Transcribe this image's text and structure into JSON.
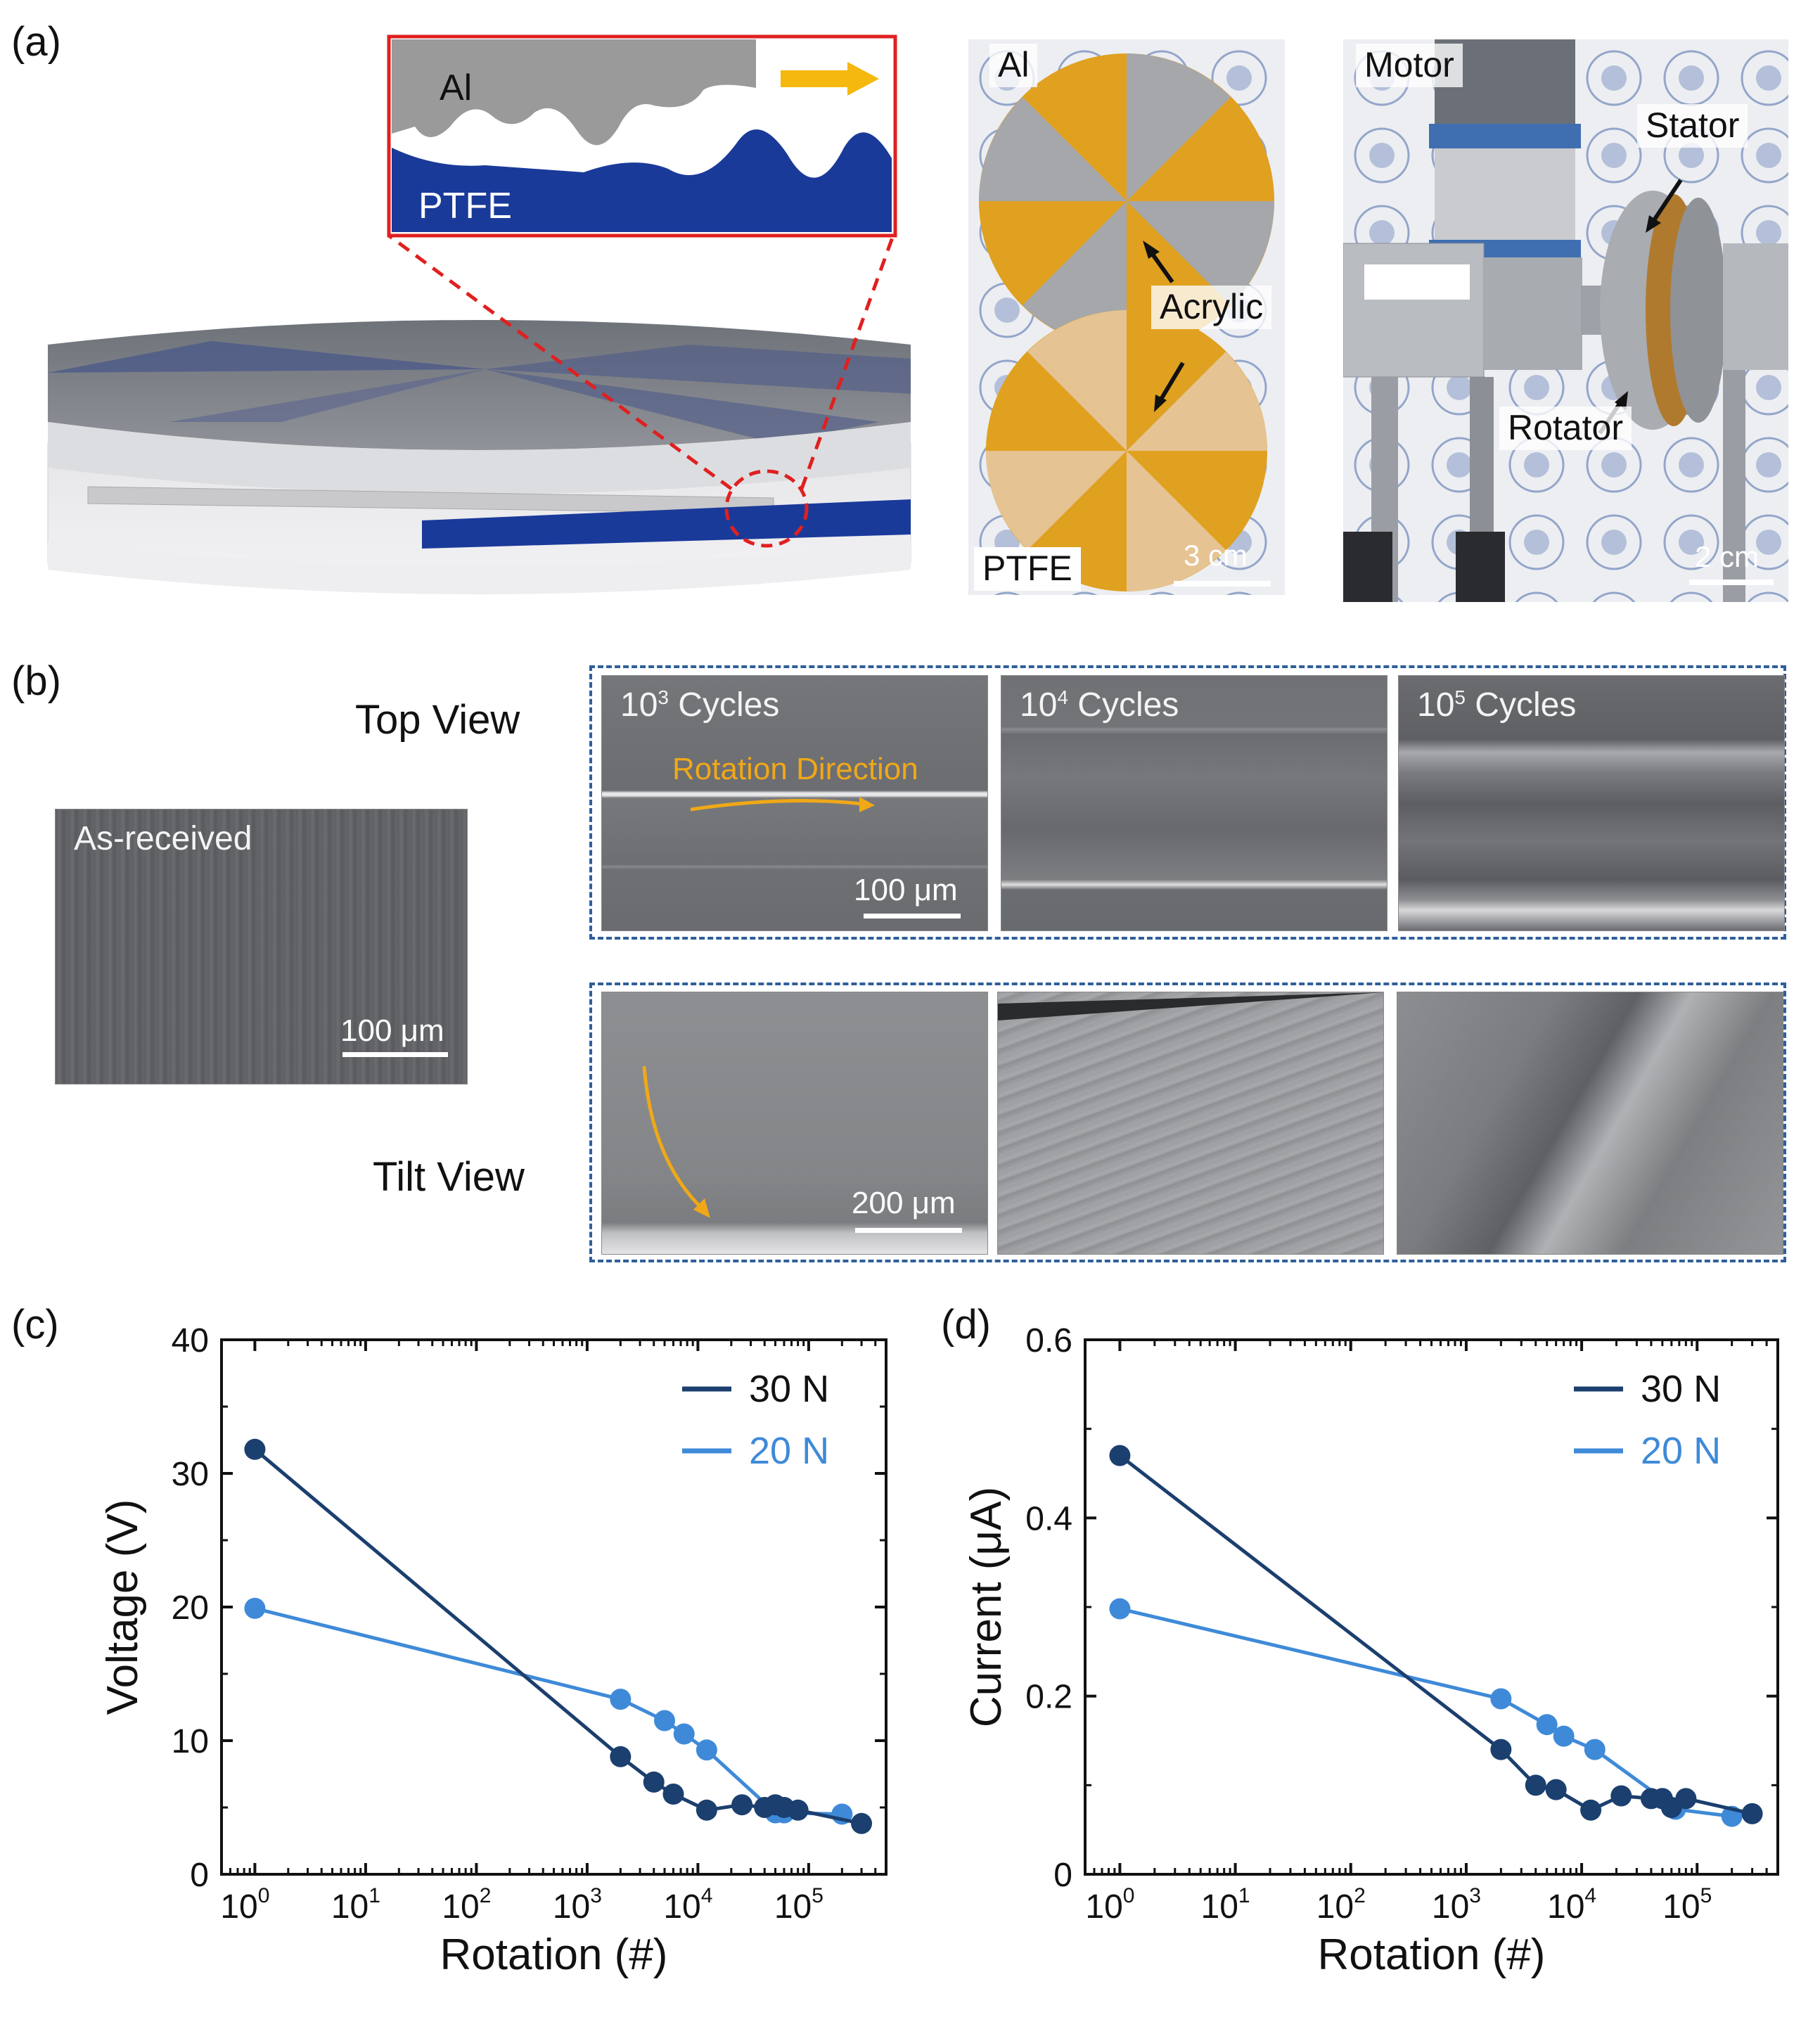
{
  "panel_a": {
    "label": "(a)",
    "inset": {
      "top_label": "Al",
      "bottom_label": "PTFE"
    },
    "photo_middle": {
      "label_top": "Al",
      "label_arrow": "Acrylic",
      "label_bottom": "PTFE",
      "scale": "3 cm"
    },
    "photo_right": {
      "label_motor": "Motor",
      "label_stator": "Stator",
      "label_rotator": "Rotator",
      "scale": "2 cm"
    },
    "colors": {
      "ptfe_blue": "#1a3a9a",
      "acrylic_amber": "#e0a020",
      "inset_border": "#e02020"
    }
  },
  "panel_b": {
    "label": "(b)",
    "as_received": {
      "label": "As-received",
      "scale": "100 μm"
    },
    "top_view": {
      "label": "Top View",
      "panels": [
        {
          "base": "10",
          "exp": "3",
          "suffix": " Cycles",
          "annotation": "Rotation Direction",
          "scale": "100 μm"
        },
        {
          "base": "10",
          "exp": "4",
          "suffix": " Cycles"
        },
        {
          "base": "10",
          "exp": "5",
          "suffix": " Cycles"
        }
      ]
    },
    "tilt_view": {
      "label": "Tilt View",
      "scale": "200 μm"
    },
    "colors": {
      "arrow": "#f0a818",
      "dash": "#2f5f9a"
    }
  },
  "chart_data": [
    {
      "panel": "(c)",
      "type": "line",
      "xscale": "log",
      "xlabel": "Rotation (#)",
      "ylabel": "Voltage (V)",
      "xlim": [
        0.5,
        500000
      ],
      "ylim": [
        0,
        40
      ],
      "xticks": [
        {
          "base": "10",
          "exp": "0",
          "v": 1
        },
        {
          "base": "10",
          "exp": "1",
          "v": 10
        },
        {
          "base": "10",
          "exp": "2",
          "v": 100
        },
        {
          "base": "10",
          "exp": "3",
          "v": 1000
        },
        {
          "base": "10",
          "exp": "4",
          "v": 10000
        },
        {
          "base": "10",
          "exp": "5",
          "v": 100000
        }
      ],
      "yticks": [
        "0",
        "10",
        "20",
        "30",
        "40"
      ],
      "yticks_values": [
        0,
        10,
        20,
        30,
        40
      ],
      "series": [
        {
          "name": "30 N",
          "color": "#1b3f6e",
          "x": [
            1,
            2000,
            4000,
            6000,
            12000,
            25000,
            40000,
            50000,
            60000,
            80000,
            300000
          ],
          "y": [
            31.8,
            8.8,
            6.9,
            6.0,
            4.8,
            5.2,
            5.0,
            5.2,
            5.0,
            4.8,
            3.8
          ]
        },
        {
          "name": "20 N",
          "color": "#3f8ad8",
          "x": [
            1,
            2000,
            5000,
            7500,
            12000,
            50000,
            60000,
            200000
          ],
          "y": [
            19.9,
            13.1,
            11.5,
            10.5,
            9.3,
            4.6,
            4.6,
            4.5
          ]
        }
      ]
    },
    {
      "panel": "(d)",
      "type": "line",
      "xscale": "log",
      "xlabel": "Rotation (#)",
      "ylabel": "Current (μA)",
      "xlim": [
        0.5,
        500000
      ],
      "ylim": [
        0,
        0.6
      ],
      "xticks": [
        {
          "base": "10",
          "exp": "0",
          "v": 1
        },
        {
          "base": "10",
          "exp": "1",
          "v": 10
        },
        {
          "base": "10",
          "exp": "2",
          "v": 100
        },
        {
          "base": "10",
          "exp": "3",
          "v": 1000
        },
        {
          "base": "10",
          "exp": "4",
          "v": 10000
        },
        {
          "base": "10",
          "exp": "5",
          "v": 100000
        }
      ],
      "yticks": [
        "0",
        "0.2",
        "0.4",
        "0.6"
      ],
      "yticks_values": [
        0,
        0.2,
        0.4,
        0.6
      ],
      "series": [
        {
          "name": "30 N",
          "color": "#1b3f6e",
          "x": [
            1,
            2000,
            4000,
            6000,
            12000,
            22000,
            40000,
            50000,
            60000,
            80000,
            300000
          ],
          "y": [
            0.47,
            0.14,
            0.1,
            0.095,
            0.072,
            0.088,
            0.085,
            0.085,
            0.075,
            0.085,
            0.068
          ]
        },
        {
          "name": "20 N",
          "color": "#3f8ad8",
          "x": [
            1,
            2000,
            5000,
            7000,
            13000,
            50000,
            65000,
            200000
          ],
          "y": [
            0.298,
            0.197,
            0.168,
            0.155,
            0.14,
            0.085,
            0.073,
            0.065
          ]
        }
      ]
    }
  ]
}
